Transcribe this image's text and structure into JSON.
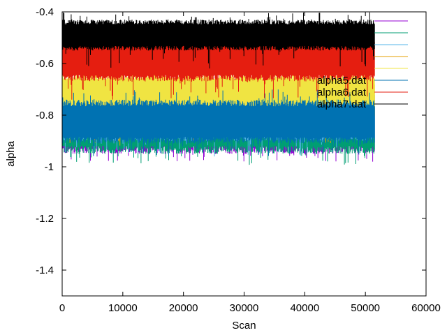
{
  "chart_data": {
    "type": "line",
    "title": "",
    "xlabel": "Scan",
    "ylabel": "alpha",
    "xlim": [
      0,
      60000
    ],
    "ylim": [
      -1.5,
      -0.4
    ],
    "xticks": [
      0,
      10000,
      20000,
      30000,
      40000,
      50000,
      60000
    ],
    "xtick_labels": [
      "0",
      "10000",
      "20000",
      "30000",
      "40000",
      "50000",
      "60000"
    ],
    "yticks": [
      -0.4,
      -0.6,
      -0.8,
      -1,
      -1.2,
      -1.4
    ],
    "ytick_labels": [
      "-0.4",
      "-0.6",
      "-0.8",
      "-1",
      "-1.2",
      "-1.4"
    ],
    "grid": false,
    "legend_position": "top-right",
    "x_extent": [
      0,
      51500
    ],
    "series": [
      {
        "label": "",
        "color": "#9400d3",
        "band": [
          -0.95,
          -0.74
        ],
        "spike_low": -0.98,
        "spike_high": -0.7
      },
      {
        "label": "",
        "color": "#009e73",
        "band": [
          -0.95,
          -0.74
        ],
        "spike_low": -1.0,
        "spike_high": -0.7
      },
      {
        "label": "",
        "color": "#56b4e9",
        "band": [
          -0.9,
          -0.7
        ],
        "spike_low": -0.96,
        "spike_high": -0.66
      },
      {
        "label": "",
        "color": "#e69f00",
        "band": [
          -0.82,
          -0.66
        ],
        "spike_low": -0.92,
        "spike_high": -0.62
      },
      {
        "label": "",
        "color": "#f0e442",
        "band": [
          -0.78,
          -0.64
        ],
        "spike_low": -0.86,
        "spike_high": -0.6
      },
      {
        "label": "alpha5.dat",
        "color": "#0072b2",
        "band": [
          -0.91,
          -0.74
        ],
        "spike_low": -0.96,
        "spike_high": -0.7
      },
      {
        "label": "alpha6.dat",
        "color": "#e51e10",
        "band": [
          -0.67,
          -0.5
        ],
        "spike_low": -0.74,
        "spike_high": -0.45
      },
      {
        "label": "alpha7.dat",
        "color": "#000000",
        "band": [
          -0.55,
          -0.43
        ],
        "spike_low": -0.62,
        "spike_high": -0.4
      }
    ]
  }
}
